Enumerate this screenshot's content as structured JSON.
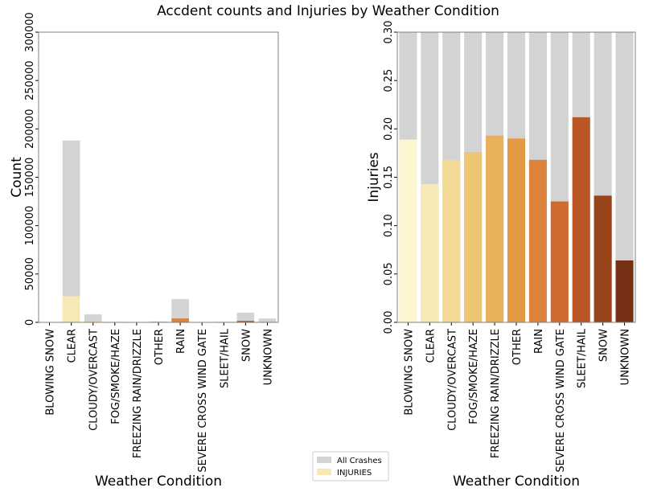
{
  "title": "Accdent counts and Injuries by Weather Condition",
  "legend": {
    "entries": [
      {
        "label": "All Crashes",
        "color": "#d3d3d3"
      },
      {
        "label": "INJURIES",
        "color": "#f7e9b5"
      }
    ]
  },
  "chart_data": [
    {
      "type": "bar",
      "xlabel": "Weather Condition",
      "ylabel": "Count",
      "ylim": [
        0,
        300000
      ],
      "yticks": [
        0,
        50000,
        100000,
        150000,
        200000,
        250000,
        300000
      ],
      "categories": [
        "BLOWING SNOW",
        "CLEAR",
        "CLOUDY/OVERCAST",
        "FOG/SMOKE/HAZE",
        "FREEZING RAIN/DRIZZLE",
        "OTHER",
        "RAIN",
        "SEVERE CROSS WIND GATE",
        "SLEET/HAIL",
        "SNOW",
        "UNKNOWN"
      ],
      "series": [
        {
          "name": "All Crashes",
          "values": [
            50,
            188000,
            8200,
            500,
            300,
            1000,
            24000,
            60,
            600,
            10000,
            4000
          ]
        },
        {
          "name": "INJURIES",
          "values": [
            10,
            27000,
            1380,
            90,
            60,
            190,
            4040,
            8,
            128,
            1320,
            256
          ]
        }
      ],
      "grid": false
    },
    {
      "type": "bar",
      "xlabel": "Weather Condition",
      "ylabel": "Injuries",
      "ylim": [
        0,
        0.3
      ],
      "yticks": [
        "0.00",
        "0.05",
        "0.10",
        "0.15",
        "0.20",
        "0.25",
        "0.30"
      ],
      "categories": [
        "BLOWING SNOW",
        "CLEAR",
        "CLOUDY/OVERCAST",
        "FOG/SMOKE/HAZE",
        "FREEZING RAIN/DRIZZLE",
        "OTHER",
        "RAIN",
        "SEVERE CROSS WIND GATE",
        "SLEET/HAIL",
        "SNOW",
        "UNKNOWN"
      ],
      "series": [
        {
          "name": "All Crashes",
          "values": [
            0.3,
            0.3,
            0.3,
            0.3,
            0.3,
            0.3,
            0.3,
            0.3,
            0.3,
            0.3,
            0.3
          ]
        },
        {
          "name": "INJURIES",
          "values": [
            0.189,
            0.143,
            0.168,
            0.176,
            0.193,
            0.19,
            0.168,
            0.125,
            0.212,
            0.131,
            0.064
          ]
        }
      ],
      "grid": false
    }
  ],
  "colors": {
    "all_crashes": "#d3d3d3",
    "palette": [
      "#fdf4d0",
      "#f7e9b5",
      "#f2d996",
      "#ecc672",
      "#e8b15a",
      "#e49a45",
      "#dc823a",
      "#cf6b2f",
      "#b95624",
      "#9a441b",
      "#783014"
    ]
  }
}
